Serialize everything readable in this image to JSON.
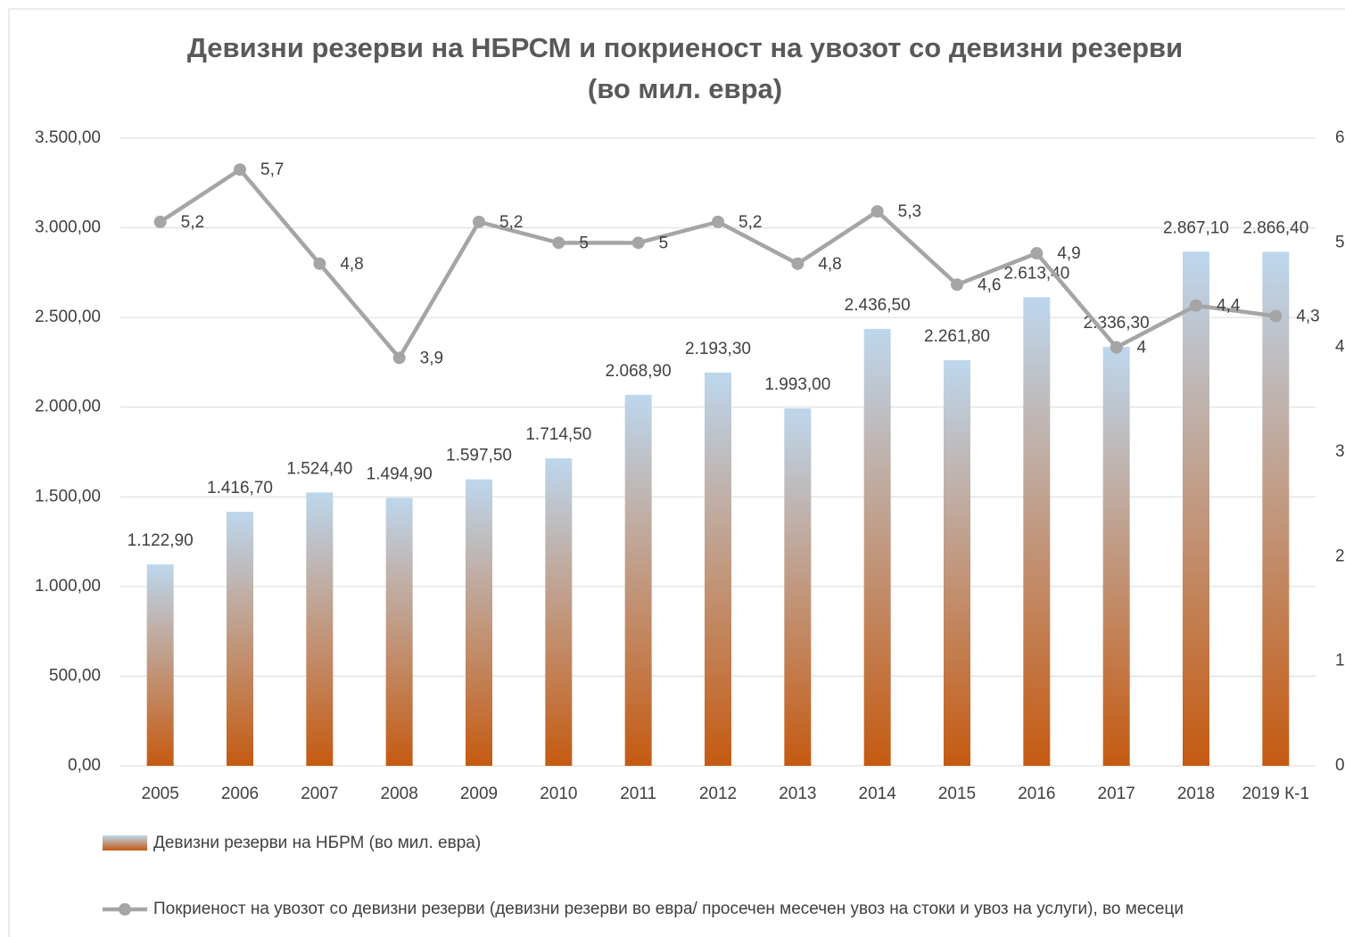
{
  "chart_data": {
    "type": "combo",
    "title": "Девизни резерви на НБРСМ и покриеност на увозот со девизни резерви",
    "subtitle": "(во мил. евра)",
    "categories": [
      "2005",
      "2006",
      "2007",
      "2008",
      "2009",
      "2010",
      "2011",
      "2012",
      "2013",
      "2014",
      "2015",
      "2016",
      "2017",
      "2018",
      "2019 К-1"
    ],
    "series": [
      {
        "name": "Девизни резерви на НБРМ (во мил. евра)",
        "type": "bar",
        "axis": "y",
        "color": [
          "#bdd7ee",
          "#c55a11"
        ],
        "values": [
          1122.9,
          1416.7,
          1524.4,
          1494.9,
          1597.5,
          1714.5,
          2068.9,
          2193.3,
          1993.0,
          2436.5,
          2261.8,
          2613.4,
          2336.3,
          2867.1,
          2866.4
        ],
        "value_labels": [
          "1.122,90",
          "1.416,70",
          "1.524,40",
          "1.494,90",
          "1.597,50",
          "1.714,50",
          "2.068,90",
          "2.193,30",
          "1.993,00",
          "2.436,50",
          "2.261,80",
          "2.613,40",
          "2.336,30",
          "2.867,10",
          "2.866,40"
        ]
      },
      {
        "name": "Покриеност на увозот со девизни резерви (девизни резерви во евра/ просечен месечен увоз на стоки и увоз на услуги), во месеци",
        "type": "line",
        "axis": "y2",
        "color": "#a5a5a5",
        "values": [
          5.2,
          5.7,
          4.8,
          3.9,
          5.2,
          5,
          5,
          5.2,
          4.8,
          5.3,
          4.6,
          4.9,
          4,
          4.4,
          4.3
        ],
        "value_labels": [
          "5,2",
          "5,7",
          "4,8",
          "3,9",
          "5,2",
          "5",
          "5",
          "5,2",
          "4,8",
          "5,3",
          "4,6",
          "4,9",
          "4",
          "4,4",
          "4,3"
        ]
      }
    ],
    "ylim": [
      0,
      3500
    ],
    "yticks": [
      {
        "value": 0,
        "label": "0,00"
      },
      {
        "value": 500,
        "label": "500,00"
      },
      {
        "value": 1000,
        "label": "1.000,00"
      },
      {
        "value": 1500,
        "label": "1.500,00"
      },
      {
        "value": 2000,
        "label": "2.000,00"
      },
      {
        "value": 2500,
        "label": "2.500,00"
      },
      {
        "value": 3000,
        "label": "3.000,00"
      },
      {
        "value": 3500,
        "label": "3.500,00"
      }
    ],
    "y2lim": [
      0,
      6
    ],
    "y2ticks": [
      0,
      1,
      2,
      3,
      4,
      5,
      6
    ],
    "grid": true,
    "legend": "bottom"
  }
}
